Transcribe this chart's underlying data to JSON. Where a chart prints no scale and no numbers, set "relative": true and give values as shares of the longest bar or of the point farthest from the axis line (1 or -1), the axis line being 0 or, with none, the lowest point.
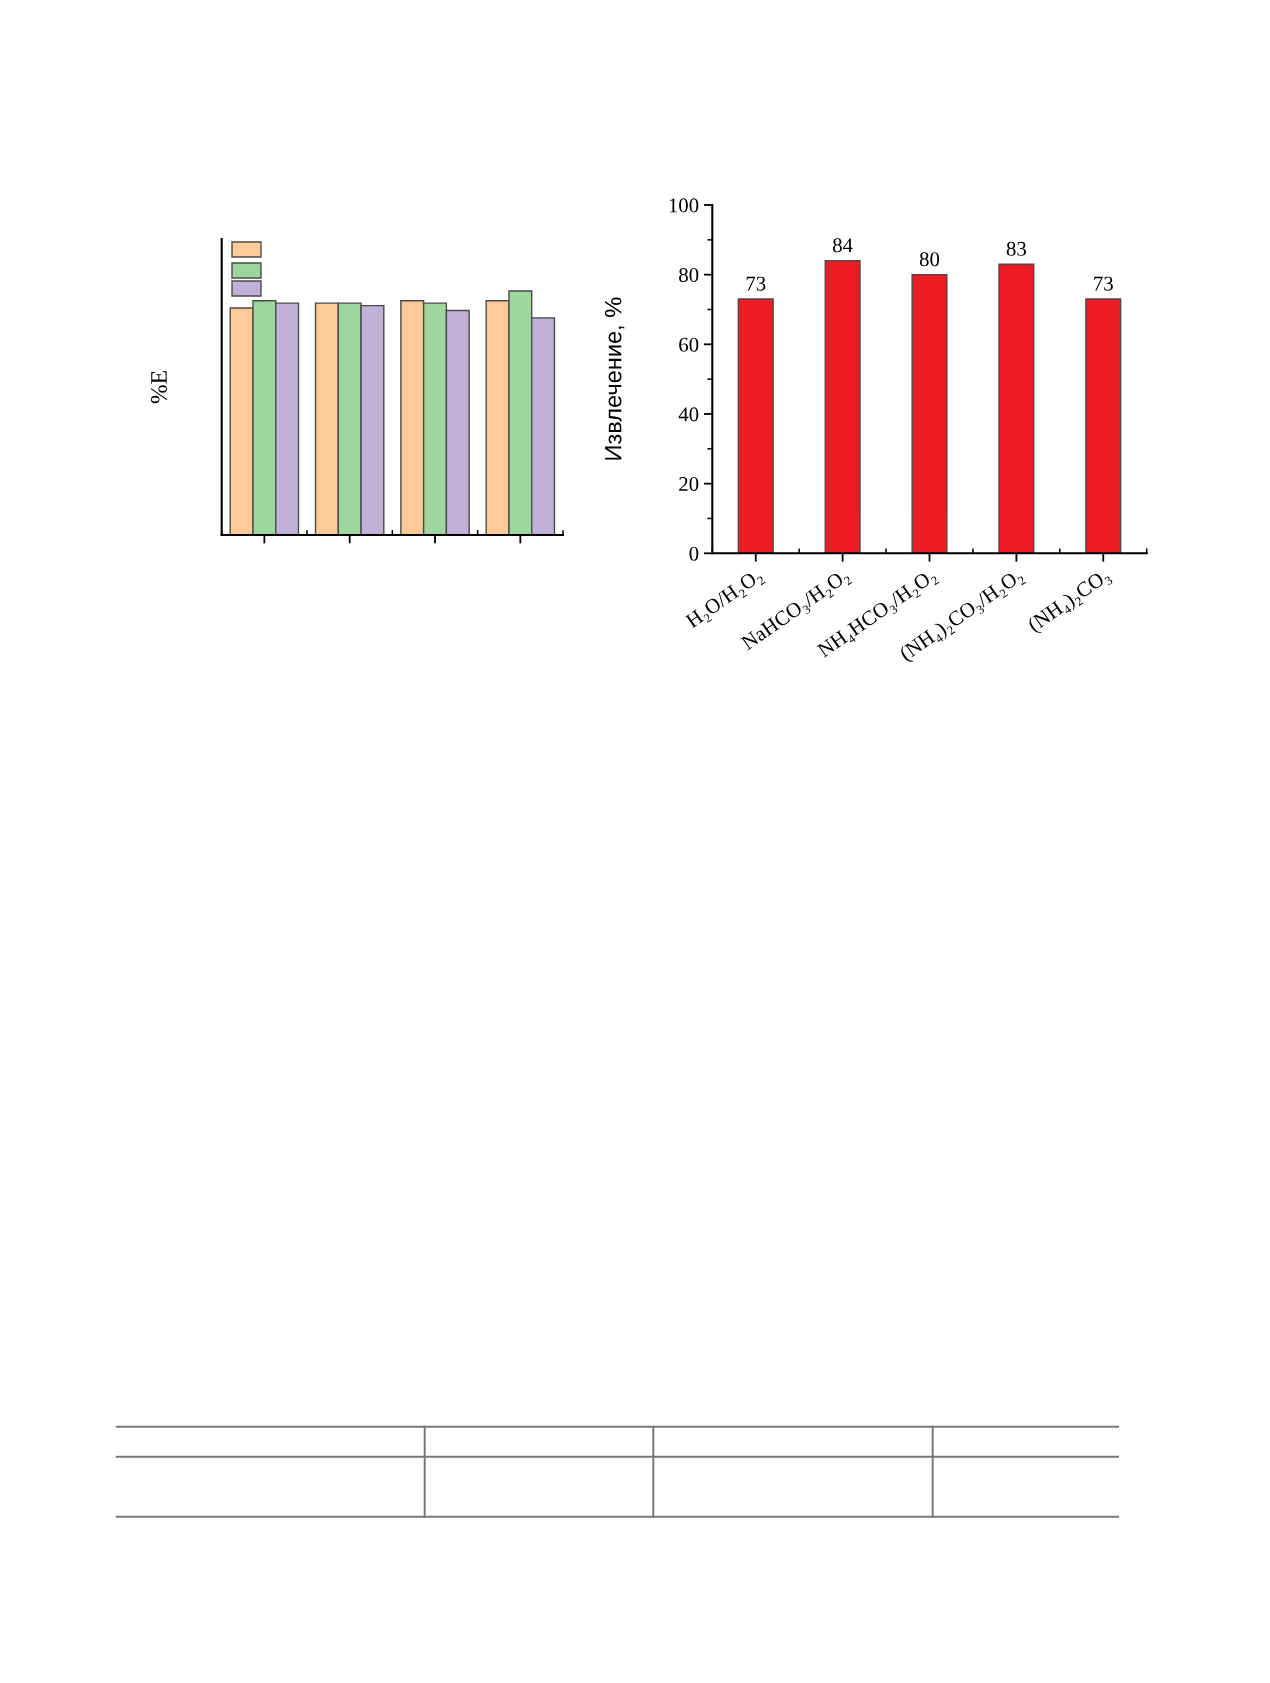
{
  "chart_data": [
    {
      "type": "bar",
      "ylabel": "%E",
      "relative": true,
      "categories": [
        null,
        null,
        null,
        null
      ],
      "series": [
        {
          "color": "#fdca98",
          "values": [
            0.93,
            0.95,
            0.96,
            0.96
          ]
        },
        {
          "color": "#9fd59f",
          "values": [
            0.96,
            0.95,
            0.95,
            1
          ]
        },
        {
          "color": "#c0b1d6",
          "values": [
            0.95,
            0.94,
            0.92,
            0.89
          ]
        }
      ]
    },
    {
      "type": "bar",
      "ylabel": "Извлечение, %",
      "categories": [
        "H₂O/H₂O₂",
        "NaHCO₃/H₂O₂",
        "NH₄HCO₃/H₂O₂",
        "(NH₄)₂CO₃/H₂O₂",
        "(NH₄)₂CO₃"
      ],
      "values": [
        73,
        84,
        80,
        83,
        73
      ],
      "color": "#ed1c24",
      "ylim": [
        0,
        100
      ],
      "yticks": [
        0,
        20,
        40,
        60,
        80,
        100
      ],
      "data_labels": true
    }
  ]
}
